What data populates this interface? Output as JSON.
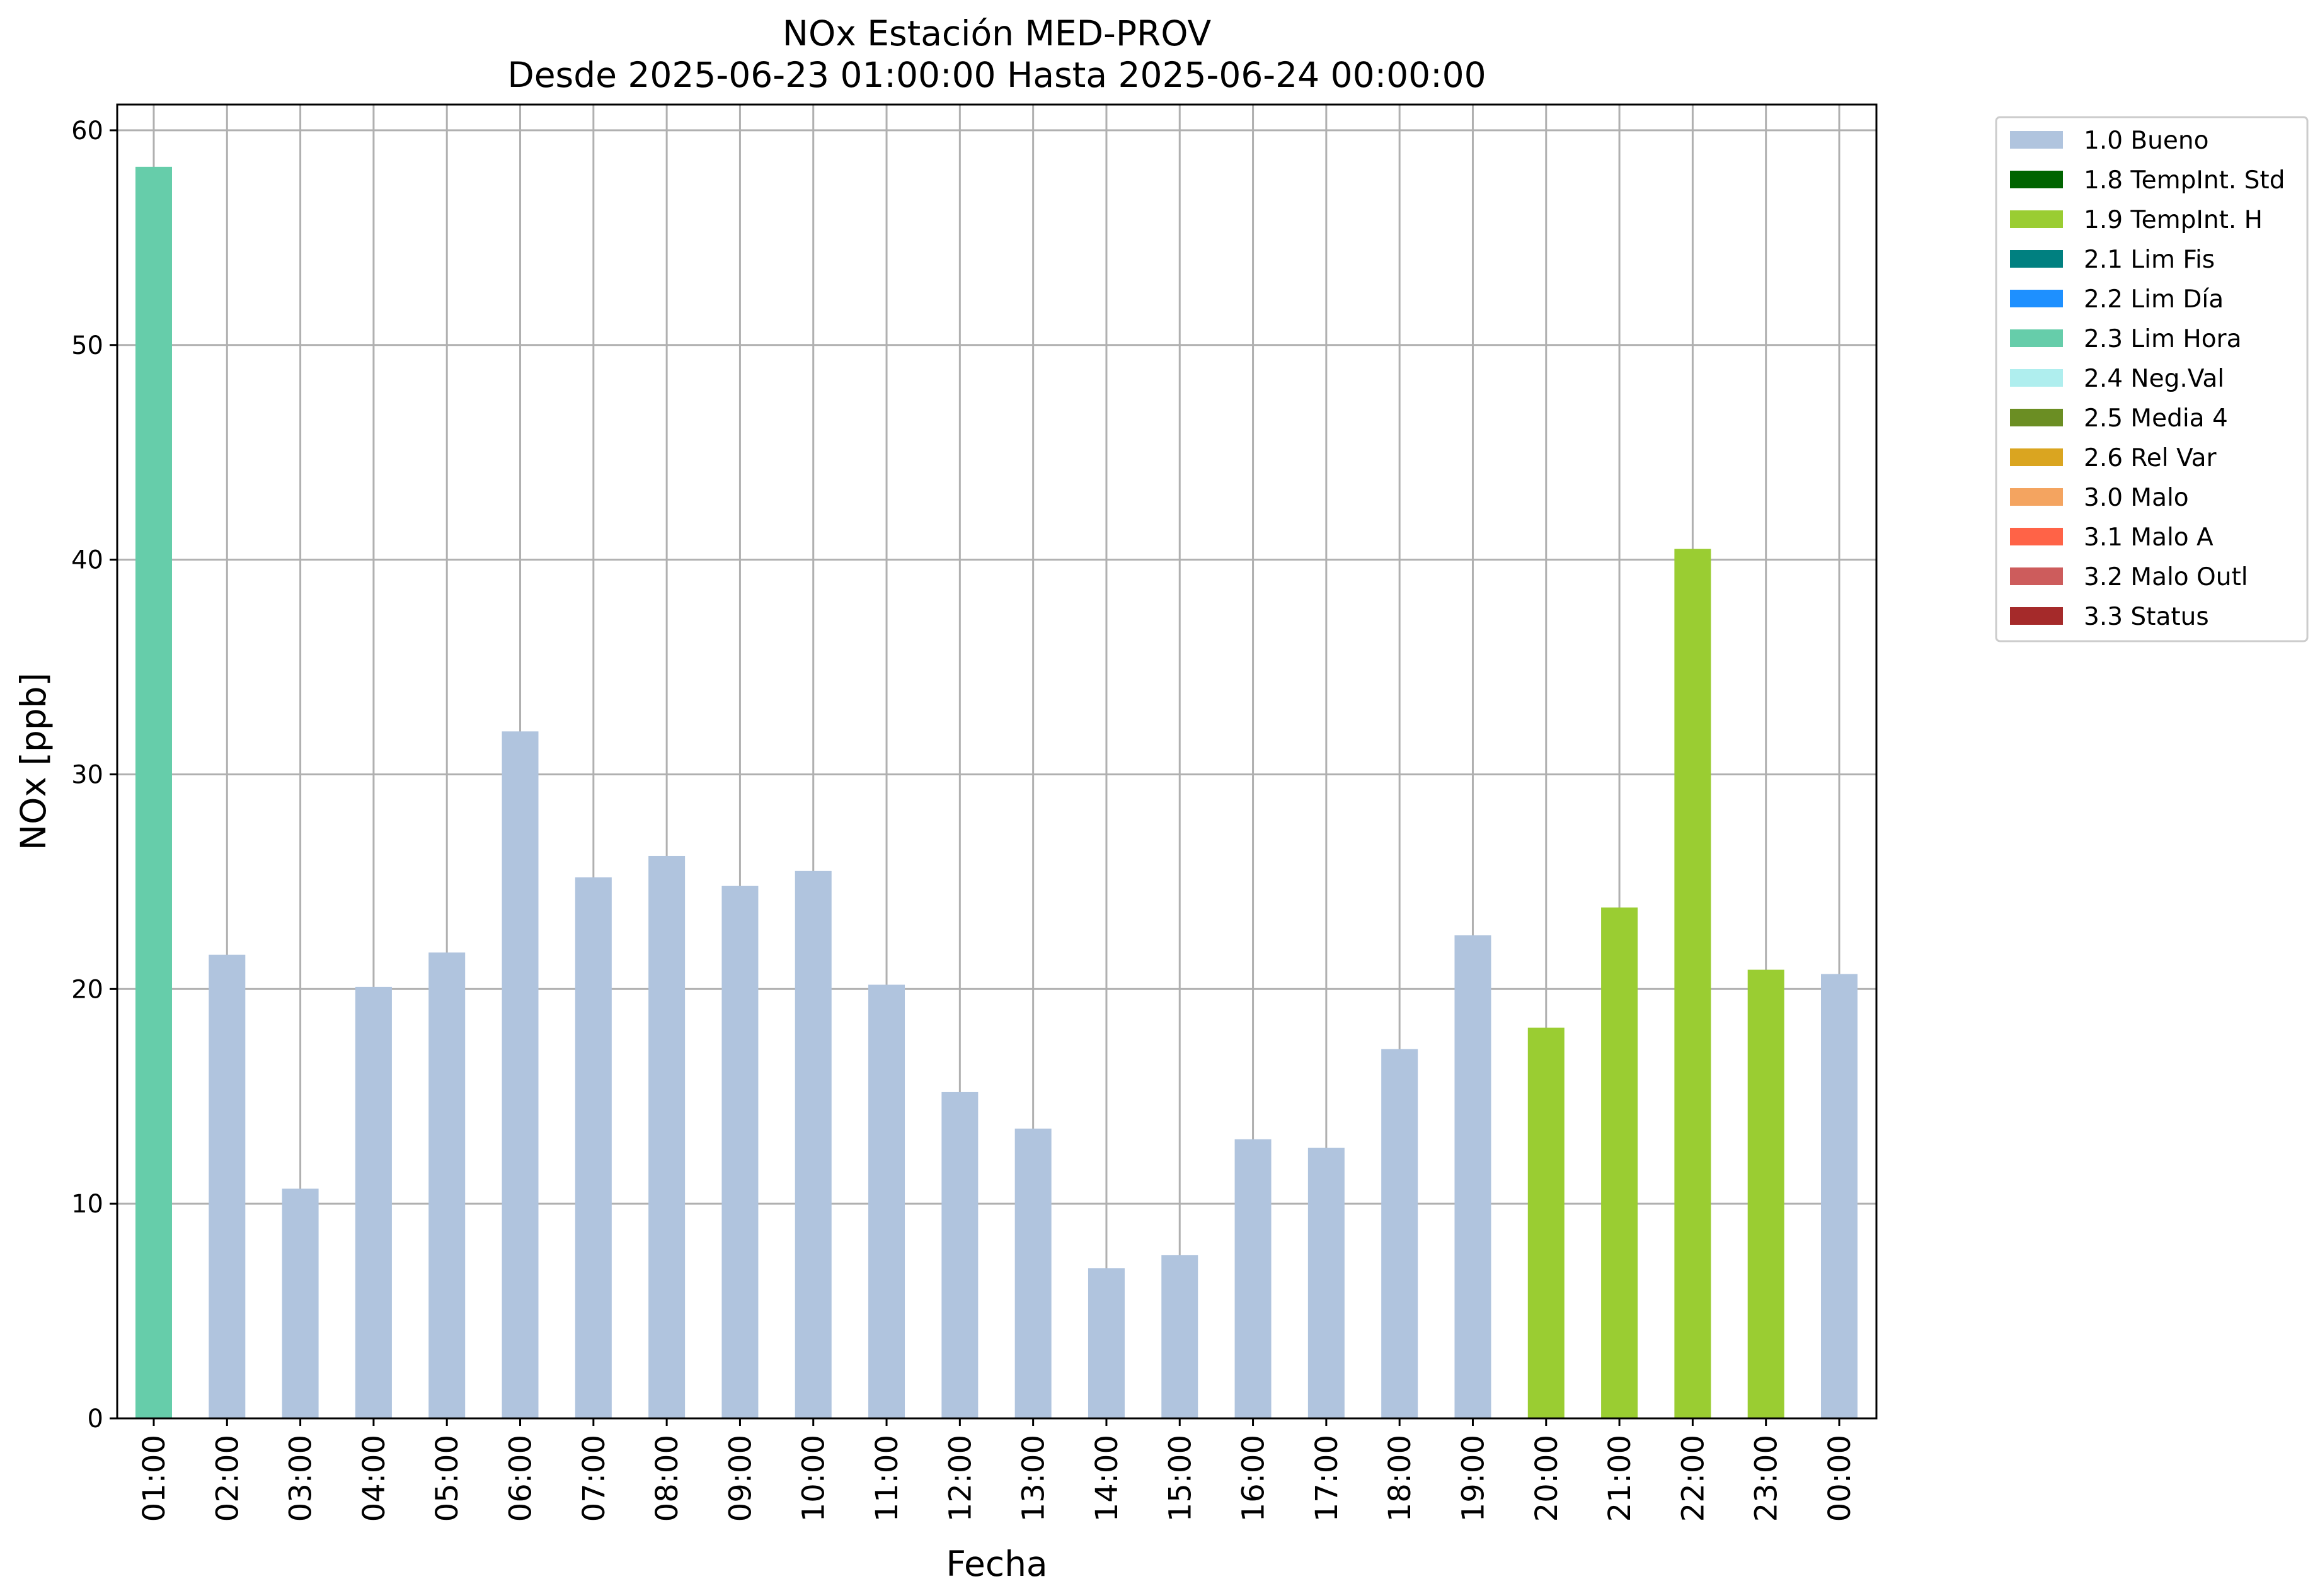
{
  "chart_data": {
    "type": "bar",
    "title": "NOx Estación MED-PROV",
    "subtitle": "Desde 2025-06-23 01:00:00 Hasta 2025-06-24 00:00:00",
    "xlabel": "Fecha",
    "ylabel": "NOx [ppb]",
    "ylim": [
      0,
      61.2
    ],
    "yticks": [
      "0",
      "10",
      "20",
      "30",
      "40",
      "50",
      "60"
    ],
    "grid": true,
    "legend_position": "outside-top-right",
    "categories": [
      "01:00",
      "02:00",
      "03:00",
      "04:00",
      "05:00",
      "06:00",
      "07:00",
      "08:00",
      "09:00",
      "10:00",
      "11:00",
      "12:00",
      "13:00",
      "14:00",
      "15:00",
      "16:00",
      "17:00",
      "18:00",
      "19:00",
      "20:00",
      "21:00",
      "22:00",
      "23:00",
      "00:00"
    ],
    "values": [
      58.3,
      21.6,
      10.7,
      20.1,
      21.7,
      32.0,
      25.2,
      26.2,
      24.8,
      25.5,
      20.2,
      15.2,
      13.5,
      7.0,
      7.6,
      13.0,
      12.6,
      17.2,
      22.5,
      18.2,
      23.8,
      40.5,
      20.9,
      20.7
    ],
    "flags": [
      "2.3 Lim Hora",
      "1.0 Bueno",
      "1.0 Bueno",
      "1.0 Bueno",
      "1.0 Bueno",
      "1.0 Bueno",
      "1.0 Bueno",
      "1.0 Bueno",
      "1.0 Bueno",
      "1.0 Bueno",
      "1.0 Bueno",
      "1.0 Bueno",
      "1.0 Bueno",
      "1.0 Bueno",
      "1.0 Bueno",
      "1.0 Bueno",
      "1.0 Bueno",
      "1.0 Bueno",
      "1.0 Bueno",
      "1.9 TempInt. H",
      "1.9 TempInt. H",
      "1.9 TempInt. H",
      "1.9 TempInt. H",
      "1.0 Bueno"
    ],
    "legend": [
      {
        "name": "1.0 Bueno",
        "color": "#b0c4de"
      },
      {
        "name": "1.8 TempInt. Std",
        "color": "#006400"
      },
      {
        "name": "1.9 TempInt. H",
        "color": "#9acd32"
      },
      {
        "name": "2.1 Lim Fis",
        "color": "#008080"
      },
      {
        "name": "2.2 Lim Día",
        "color": "#1e90ff"
      },
      {
        "name": "2.3 Lim Hora",
        "color": "#66cdaa"
      },
      {
        "name": "2.4 Neg.Val",
        "color": "#afeeee"
      },
      {
        "name": "2.5 Media 4",
        "color": "#6b8e23"
      },
      {
        "name": "2.6 Rel Var",
        "color": "#daa520"
      },
      {
        "name": "3.0 Malo",
        "color": "#f4a460"
      },
      {
        "name": "3.1 Malo A",
        "color": "#ff6347"
      },
      {
        "name": "3.2 Malo Outl",
        "color": "#cd5c5c"
      },
      {
        "name": "3.3 Status",
        "color": "#a52a2a"
      }
    ]
  }
}
